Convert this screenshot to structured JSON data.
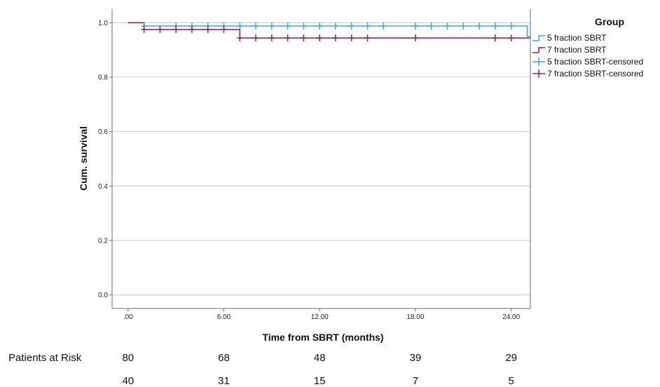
{
  "chart_data": {
    "type": "kaplan-meier",
    "xlabel": "Time from SBRT (months)",
    "ylabel": "Cum. survival",
    "xlim": [
      -1,
      25.2
    ],
    "ylim": [
      -0.05,
      1.05
    ],
    "x_ticks": [
      ".00",
      "6.00",
      "12.00",
      "18.00",
      "24.00"
    ],
    "x_tick_values": [
      0,
      6,
      12,
      18,
      24
    ],
    "y_ticks": [
      "0.0",
      "0.2",
      "0.4",
      "0.6",
      "0.8",
      "1.0"
    ],
    "y_tick_values": [
      0.0,
      0.2,
      0.4,
      0.6,
      0.8,
      1.0
    ],
    "grid": "horizontal",
    "legend": {
      "title": "Group",
      "placement": "right",
      "entries": [
        {
          "label": "5 fraction SBRT",
          "kind": "line",
          "color": "#3aa6dd"
        },
        {
          "label": "7 fraction SBRT",
          "kind": "line",
          "color": "#8b2252"
        },
        {
          "label": "5 fraction SBRT-censored",
          "kind": "censor",
          "color": "#3aa6dd"
        },
        {
          "label": "7 fraction SBRT-censored",
          "kind": "censor",
          "color": "#8b2252"
        }
      ]
    },
    "series": [
      {
        "name": "5 fraction SBRT",
        "color": "#3aa6dd",
        "steps": [
          [
            0,
            1.0
          ],
          [
            1.0,
            0.988
          ],
          [
            25.0,
            0.988
          ],
          [
            25.0,
            0.95
          ],
          [
            25.2,
            0.95
          ]
        ],
        "censored": [
          [
            1.0,
            0.988
          ],
          [
            3.0,
            0.988
          ],
          [
            4.0,
            0.988
          ],
          [
            5.0,
            0.988
          ],
          [
            6.0,
            0.988
          ],
          [
            7.0,
            0.988
          ],
          [
            8.0,
            0.988
          ],
          [
            9.0,
            0.988
          ],
          [
            10.0,
            0.988
          ],
          [
            11.0,
            0.988
          ],
          [
            12.0,
            0.988
          ],
          [
            13.0,
            0.988
          ],
          [
            14.0,
            0.988
          ],
          [
            15.0,
            0.988
          ],
          [
            16.0,
            0.988
          ],
          [
            18.0,
            0.988
          ],
          [
            19.0,
            0.988
          ],
          [
            20.0,
            0.988
          ],
          [
            21.0,
            0.988
          ],
          [
            22.0,
            0.988
          ],
          [
            23.0,
            0.988
          ],
          [
            24.0,
            0.988
          ]
        ]
      },
      {
        "name": "7 fraction SBRT",
        "color": "#8b2252",
        "steps": [
          [
            0,
            1.0
          ],
          [
            1.0,
            0.975
          ],
          [
            7.0,
            0.975
          ],
          [
            7.0,
            0.944
          ],
          [
            25.2,
            0.944
          ]
        ],
        "censored": [
          [
            1.0,
            0.975
          ],
          [
            2.0,
            0.975
          ],
          [
            3.0,
            0.975
          ],
          [
            4.0,
            0.975
          ],
          [
            5.0,
            0.975
          ],
          [
            6.0,
            0.975
          ],
          [
            7.0,
            0.944
          ],
          [
            8.0,
            0.944
          ],
          [
            9.0,
            0.944
          ],
          [
            10.0,
            0.944
          ],
          [
            11.0,
            0.944
          ],
          [
            12.0,
            0.944
          ],
          [
            13.0,
            0.944
          ],
          [
            14.0,
            0.944
          ],
          [
            15.0,
            0.944
          ],
          [
            18.0,
            0.944
          ],
          [
            23.0,
            0.944
          ],
          [
            24.0,
            0.944
          ]
        ]
      }
    ],
    "risk_table": {
      "title": "Patients at Risk",
      "times": [
        0,
        6,
        12,
        18,
        24
      ],
      "rows": [
        [
          "80",
          "68",
          "48",
          "39",
          "29"
        ],
        [
          "40",
          "31",
          "15",
          "7",
          "5"
        ]
      ]
    }
  }
}
